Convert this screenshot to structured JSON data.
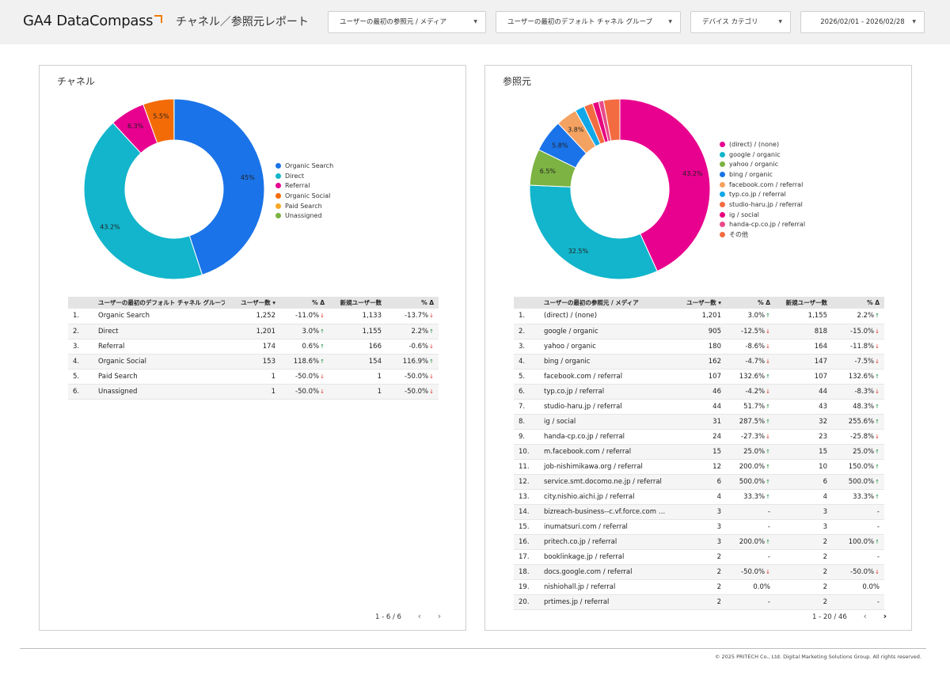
{
  "header": {
    "logo": "GA4 DataCompass",
    "title": "チャネル／参照元レポート",
    "filters": [
      {
        "label": "ユーザーの最初の参照元 / メディア"
      },
      {
        "label": "ユーザーの最初のデフォルト チャネル グループ"
      },
      {
        "label": "デバイス カテゴリ"
      },
      {
        "label": "2026/02/01 - 2026/02/28"
      }
    ]
  },
  "channel_panel": {
    "title": "チャネル",
    "columns": [
      "",
      "ユーザーの最初のデフォルト チャネル グループ",
      "ユーザー数",
      "% Δ",
      "新規ユーザー数",
      "% Δ"
    ],
    "sort_indicator": "▾",
    "rows": [
      {
        "n": "1.",
        "name": "Organic Search",
        "users": "1,252",
        "d1": "-11.0%",
        "t1": "down",
        "nu": "1,133",
        "d2": "-13.7%",
        "t2": "down"
      },
      {
        "n": "2.",
        "name": "Direct",
        "users": "1,201",
        "d1": "3.0%",
        "t1": "up",
        "nu": "1,155",
        "d2": "2.2%",
        "t2": "up"
      },
      {
        "n": "3.",
        "name": "Referral",
        "users": "174",
        "d1": "0.6%",
        "t1": "up",
        "nu": "166",
        "d2": "-0.6%",
        "t2": "down"
      },
      {
        "n": "4.",
        "name": "Organic Social",
        "users": "153",
        "d1": "118.6%",
        "t1": "up",
        "nu": "154",
        "d2": "116.9%",
        "t2": "up"
      },
      {
        "n": "5.",
        "name": "Paid Search",
        "users": "1",
        "d1": "-50.0%",
        "t1": "down",
        "nu": "1",
        "d2": "-50.0%",
        "t2": "down"
      },
      {
        "n": "6.",
        "name": "Unassigned",
        "users": "1",
        "d1": "-50.0%",
        "t1": "down",
        "nu": "1",
        "d2": "-50.0%",
        "t2": "down"
      }
    ],
    "pager": "1 - 6 / 6"
  },
  "referrer_panel": {
    "title": "参照元",
    "columns": [
      "",
      "ユーザーの最初の参照元 / メディア",
      "ユーザー数",
      "% Δ",
      "新規ユーザー数",
      "% Δ"
    ],
    "sort_indicator": "▾",
    "rows": [
      {
        "n": "1.",
        "name": "(direct) / (none)",
        "users": "1,201",
        "d1": "3.0%",
        "t1": "up",
        "nu": "1,155",
        "d2": "2.2%",
        "t2": "up"
      },
      {
        "n": "2.",
        "name": "google / organic",
        "users": "905",
        "d1": "-12.5%",
        "t1": "down",
        "nu": "818",
        "d2": "-15.0%",
        "t2": "down"
      },
      {
        "n": "3.",
        "name": "yahoo / organic",
        "users": "180",
        "d1": "-8.6%",
        "t1": "down",
        "nu": "164",
        "d2": "-11.8%",
        "t2": "down"
      },
      {
        "n": "4.",
        "name": "bing / organic",
        "users": "162",
        "d1": "-4.7%",
        "t1": "down",
        "nu": "147",
        "d2": "-7.5%",
        "t2": "down"
      },
      {
        "n": "5.",
        "name": "facebook.com / referral",
        "users": "107",
        "d1": "132.6%",
        "t1": "up",
        "nu": "107",
        "d2": "132.6%",
        "t2": "up"
      },
      {
        "n": "6.",
        "name": "typ.co.jp / referral",
        "users": "46",
        "d1": "-4.2%",
        "t1": "down",
        "nu": "44",
        "d2": "-8.3%",
        "t2": "down"
      },
      {
        "n": "7.",
        "name": "studio-haru.jp / referral",
        "users": "44",
        "d1": "51.7%",
        "t1": "up",
        "nu": "43",
        "d2": "48.3%",
        "t2": "up"
      },
      {
        "n": "8.",
        "name": "ig / social",
        "users": "31",
        "d1": "287.5%",
        "t1": "up",
        "nu": "32",
        "d2": "255.6%",
        "t2": "up"
      },
      {
        "n": "9.",
        "name": "handa-cp.co.jp / referral",
        "users": "24",
        "d1": "-27.3%",
        "t1": "down",
        "nu": "23",
        "d2": "-25.8%",
        "t2": "down"
      },
      {
        "n": "10.",
        "name": "m.facebook.com / referral",
        "users": "15",
        "d1": "25.0%",
        "t1": "up",
        "nu": "15",
        "d2": "25.0%",
        "t2": "up"
      },
      {
        "n": "11.",
        "name": "job-nishimikawa.org / referral",
        "users": "12",
        "d1": "200.0%",
        "t1": "up",
        "nu": "10",
        "d2": "150.0%",
        "t2": "up"
      },
      {
        "n": "12.",
        "name": "service.smt.docomo.ne.jp / referral",
        "users": "6",
        "d1": "500.0%",
        "t1": "up",
        "nu": "6",
        "d2": "500.0%",
        "t2": "up"
      },
      {
        "n": "13.",
        "name": "city.nishio.aichi.jp / referral",
        "users": "4",
        "d1": "33.3%",
        "t1": "up",
        "nu": "4",
        "d2": "33.3%",
        "t2": "up"
      },
      {
        "n": "14.",
        "name": "bizreach-business--c.vf.force.com / refe...",
        "users": "3",
        "d1": "-",
        "t1": "",
        "nu": "3",
        "d2": "-",
        "t2": ""
      },
      {
        "n": "15.",
        "name": "inumatsuri.com / referral",
        "users": "3",
        "d1": "-",
        "t1": "",
        "nu": "3",
        "d2": "-",
        "t2": ""
      },
      {
        "n": "16.",
        "name": "pritech.co.jp / referral",
        "users": "3",
        "d1": "200.0%",
        "t1": "up",
        "nu": "2",
        "d2": "100.0%",
        "t2": "up"
      },
      {
        "n": "17.",
        "name": "booklinkage.jp / referral",
        "users": "2",
        "d1": "-",
        "t1": "",
        "nu": "2",
        "d2": "-",
        "t2": ""
      },
      {
        "n": "18.",
        "name": "docs.google.com / referral",
        "users": "2",
        "d1": "-50.0%",
        "t1": "down",
        "nu": "2",
        "d2": "-50.0%",
        "t2": "down"
      },
      {
        "n": "19.",
        "name": "nishiohall.jp / referral",
        "users": "2",
        "d1": "0.0%",
        "t1": "",
        "nu": "2",
        "d2": "0.0%",
        "t2": ""
      },
      {
        "n": "20.",
        "name": "prtimes.jp / referral",
        "users": "2",
        "d1": "-",
        "t1": "",
        "nu": "2",
        "d2": "-",
        "t2": ""
      }
    ],
    "pager": "1 - 20 / 46"
  },
  "chart_data": [
    {
      "type": "pie",
      "hole": true,
      "categories": [
        "Organic Search",
        "Direct",
        "Referral",
        "Organic Social",
        "Paid Search",
        "Unassigned"
      ],
      "values": [
        45.0,
        43.2,
        6.3,
        5.5,
        0.04,
        0.04
      ],
      "labels": [
        "45%",
        "43.2%",
        "6.3%",
        "5.5%",
        "",
        ""
      ],
      "colors": [
        "#1a73e8",
        "#12b5cb",
        "#e8008f",
        "#f36b07",
        "#f9a825",
        "#7cb342"
      ],
      "legend": "right"
    },
    {
      "type": "pie",
      "hole": true,
      "categories": [
        "(direct) / (none)",
        "google / organic",
        "yahoo / organic",
        "bing / organic",
        "facebook.com / referral",
        "typ.co.jp / referral",
        "studio-haru.jp / referral",
        "ig / social",
        "handa-cp.co.jp / referral",
        "その他"
      ],
      "values": [
        43.2,
        32.5,
        6.5,
        5.8,
        3.8,
        1.7,
        1.6,
        1.1,
        0.9,
        2.9
      ],
      "labels": [
        "43.2%",
        "32.5%",
        "6.5%",
        "5.8%",
        "3.8%",
        "",
        "",
        "",
        "",
        ""
      ],
      "colors": [
        "#e8008f",
        "#12b5cb",
        "#7cb342",
        "#1a73e8",
        "#f4a261",
        "#12a8e8",
        "#f36b40",
        "#e6007e",
        "#e84a8a",
        "#f36b40"
      ],
      "legend": "right"
    }
  ],
  "footer": {
    "copyright": "© 2025 PRITECH Co., Ltd. Digital Marketing Solutions Group. All rights reserved."
  }
}
